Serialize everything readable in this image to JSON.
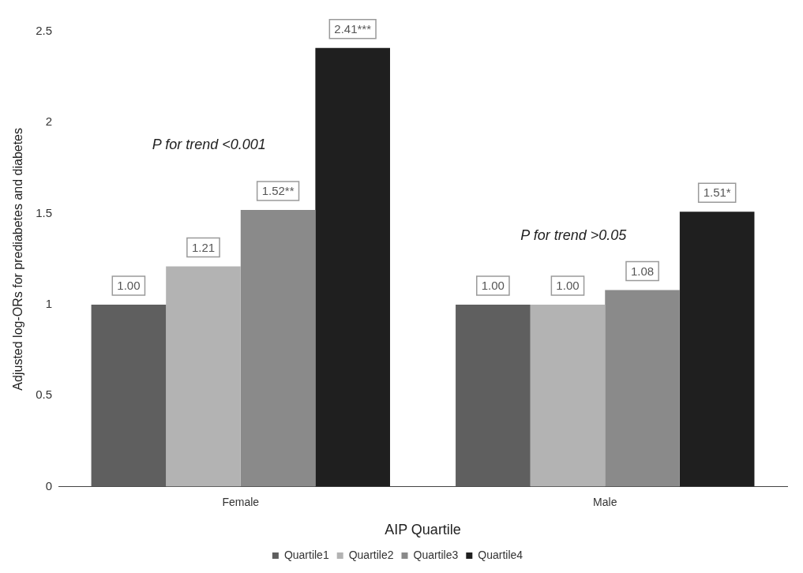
{
  "chart_data": {
    "type": "bar",
    "xlabel": "AIP Quartile",
    "ylabel": "Adjusted log-ORs for prediabetes and diabetes",
    "categories": [
      "Female",
      "Male"
    ],
    "series": [
      {
        "name": "Quartile1",
        "color": "#5f5f5f",
        "values": [
          1.0,
          1.0
        ],
        "value_labels": [
          "1.00",
          "1.00"
        ]
      },
      {
        "name": "Quartile2",
        "color": "#b3b3b3",
        "values": [
          1.21,
          1.0
        ],
        "value_labels": [
          "1.21",
          "1.00"
        ]
      },
      {
        "name": "Quartile3",
        "color": "#8a8a8a",
        "values": [
          1.52,
          1.08
        ],
        "value_labels": [
          "1.52**",
          "1.08"
        ]
      },
      {
        "name": "Quartile4",
        "color": "#1f1f1f",
        "values": [
          2.41,
          1.51
        ],
        "value_labels": [
          "2.41***",
          "1.51*"
        ]
      }
    ],
    "ylim": [
      0,
      2.5
    ],
    "yticks": [
      0,
      0.5,
      1,
      1.5,
      2,
      2.5
    ],
    "grid": false,
    "legend": "bottom",
    "annotations": [
      "P for trend <0.001",
      "P for trend >0.05"
    ]
  }
}
